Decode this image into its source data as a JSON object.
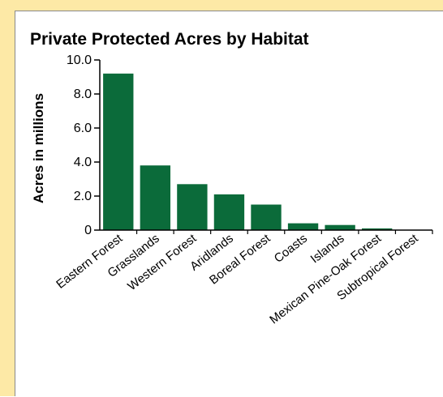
{
  "colors": {
    "background": "#fde9a6",
    "panel": "#ffffff",
    "bar": "#0b6b3a",
    "axis": "#000000"
  },
  "chart_data": {
    "type": "bar",
    "title": "Private Protected Acres by Habitat",
    "xlabel": "",
    "ylabel": "Acres in millions",
    "ylim": [
      0,
      10
    ],
    "yticks": [
      {
        "value": 10,
        "label": "10.0"
      },
      {
        "value": 8,
        "label": "8.0"
      },
      {
        "value": 6,
        "label": "6.0"
      },
      {
        "value": 4,
        "label": "4.0"
      },
      {
        "value": 2,
        "label": "2.0"
      },
      {
        "value": 0,
        "label": "0"
      }
    ],
    "categories": [
      "Eastern Forest",
      "Grasslands",
      "Western Forest",
      "Aridlands",
      "Boreal Forest",
      "Coasts",
      "Islands",
      "Mexican Pine-Oak Forest",
      "Subtropical Forest"
    ],
    "values": [
      9.2,
      3.8,
      2.7,
      2.1,
      1.5,
      0.4,
      0.3,
      0.1,
      0.02
    ],
    "grid": false,
    "legend": "none"
  }
}
